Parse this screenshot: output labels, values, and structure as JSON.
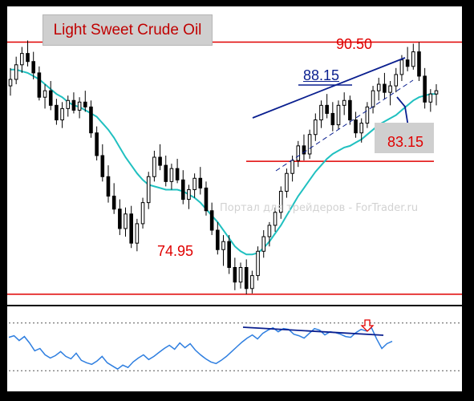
{
  "chart_title": "Light Sweet Crude Oil",
  "watermark": "Портал для трейдеров - ForTrader.ru",
  "colors": {
    "frame": "#000000",
    "background": "#ffffff",
    "candles": "#000000",
    "moving_average": "#20c0c0",
    "levels": "#e00000",
    "trendlines": "#0a1f8f",
    "oscillator": "#2f7fe0",
    "label_box": "#cfcfcf"
  },
  "annotations": {
    "resistance_label": "90.50",
    "channel_label": "88.15",
    "target_label": "83.15",
    "low_label": "74.95"
  },
  "chart_data": {
    "type": "candlestick",
    "title": "Light Sweet Crude Oil",
    "candles": [
      [
        87.8,
        88.9,
        87.2,
        88.2
      ],
      [
        88.2,
        89.6,
        87.9,
        89.1
      ],
      [
        89.1,
        90.2,
        88.6,
        89.8
      ],
      [
        89.8,
        90.6,
        89.0,
        89.3
      ],
      [
        89.3,
        89.9,
        88.2,
        88.6
      ],
      [
        88.6,
        89.0,
        86.9,
        87.1
      ],
      [
        87.1,
        87.9,
        86.4,
        87.5
      ],
      [
        87.5,
        88.1,
        86.3,
        86.6
      ],
      [
        86.6,
        87.0,
        85.4,
        85.7
      ],
      [
        85.7,
        86.8,
        85.2,
        86.4
      ],
      [
        86.4,
        87.2,
        85.9,
        86.9
      ],
      [
        86.9,
        87.4,
        86.1,
        86.3
      ],
      [
        86.3,
        87.1,
        85.8,
        86.8
      ],
      [
        86.8,
        87.5,
        86.2,
        86.5
      ],
      [
        86.5,
        86.9,
        84.6,
        84.9
      ],
      [
        84.9,
        85.3,
        83.2,
        83.5
      ],
      [
        83.5,
        84.2,
        81.9,
        82.2
      ],
      [
        82.2,
        82.9,
        80.6,
        81.0
      ],
      [
        81.0,
        81.8,
        79.9,
        80.2
      ],
      [
        80.2,
        80.8,
        78.6,
        79.0
      ],
      [
        79.0,
        80.3,
        78.5,
        79.9
      ],
      [
        79.9,
        80.4,
        77.8,
        78.1
      ],
      [
        78.1,
        79.6,
        77.6,
        79.3
      ],
      [
        79.3,
        80.9,
        79.0,
        80.6
      ],
      [
        80.6,
        82.5,
        80.2,
        82.2
      ],
      [
        82.2,
        83.8,
        81.9,
        83.4
      ],
      [
        83.4,
        84.2,
        82.6,
        82.9
      ],
      [
        82.9,
        83.5,
        81.6,
        81.9
      ],
      [
        81.9,
        83.0,
        81.4,
        82.7
      ],
      [
        82.7,
        83.3,
        81.8,
        82.0
      ],
      [
        82.0,
        82.6,
        80.5,
        80.8
      ],
      [
        80.8,
        81.7,
        80.2,
        81.4
      ],
      [
        81.4,
        82.4,
        80.9,
        82.1
      ],
      [
        82.1,
        82.8,
        81.1,
        81.5
      ],
      [
        81.5,
        81.9,
        79.8,
        80.1
      ],
      [
        80.1,
        80.6,
        78.6,
        78.9
      ],
      [
        78.9,
        79.4,
        77.4,
        77.7
      ],
      [
        77.7,
        78.6,
        76.7,
        78.2
      ],
      [
        78.2,
        78.6,
        76.2,
        76.6
      ],
      [
        76.6,
        77.2,
        75.2,
        75.7
      ],
      [
        75.7,
        76.9,
        75.3,
        76.6
      ],
      [
        76.6,
        77.1,
        74.95,
        75.3
      ],
      [
        75.3,
        76.4,
        75.0,
        76.1
      ],
      [
        76.1,
        77.9,
        75.8,
        77.6
      ],
      [
        77.6,
        78.9,
        77.2,
        78.5
      ],
      [
        78.5,
        79.4,
        77.9,
        79.2
      ],
      [
        79.2,
        80.3,
        78.8,
        80.0
      ],
      [
        80.0,
        81.6,
        79.6,
        81.3
      ],
      [
        81.3,
        82.7,
        80.9,
        82.4
      ],
      [
        82.4,
        83.5,
        81.9,
        83.2
      ],
      [
        83.2,
        84.4,
        82.8,
        84.1
      ],
      [
        84.1,
        84.8,
        83.2,
        83.6
      ],
      [
        83.6,
        85.1,
        83.3,
        84.8
      ],
      [
        84.8,
        86.1,
        84.4,
        85.7
      ],
      [
        85.7,
        86.9,
        85.2,
        86.6
      ],
      [
        86.6,
        87.3,
        85.8,
        86.1
      ],
      [
        86.1,
        86.8,
        85.0,
        85.4
      ],
      [
        85.4,
        86.9,
        85.1,
        86.6
      ],
      [
        86.6,
        87.4,
        86.0,
        86.9
      ],
      [
        86.9,
        87.2,
        85.4,
        85.7
      ],
      [
        85.7,
        86.2,
        84.6,
        84.9
      ],
      [
        84.9,
        85.8,
        84.3,
        85.5
      ],
      [
        85.5,
        86.8,
        85.2,
        86.5
      ],
      [
        86.5,
        87.8,
        86.1,
        87.5
      ],
      [
        87.5,
        88.3,
        86.9,
        87.9
      ],
      [
        87.9,
        88.6,
        87.0,
        87.4
      ],
      [
        87.4,
        88.1,
        86.6,
        87.8
      ],
      [
        87.8,
        88.9,
        87.4,
        88.5
      ],
      [
        88.5,
        89.7,
        88.1,
        89.4
      ],
      [
        89.4,
        90.2,
        88.7,
        89.0
      ],
      [
        89.0,
        90.4,
        88.8,
        89.9
      ],
      [
        89.9,
        90.5,
        88.1,
        88.4
      ],
      [
        88.4,
        88.9,
        86.4,
        86.8
      ],
      [
        86.8,
        87.6,
        86.2,
        87.3
      ],
      [
        87.3,
        87.9,
        86.6,
        87.5
      ]
    ],
    "moving_average": [
      88.8,
      88.8,
      88.7,
      88.6,
      88.4,
      88.2,
      87.9,
      87.6,
      87.3,
      87.1,
      86.8,
      86.6,
      86.5,
      86.3,
      86.1,
      85.9,
      85.5,
      85.1,
      84.6,
      84.0,
      83.4,
      82.9,
      82.4,
      82.0,
      81.7,
      81.6,
      81.5,
      81.4,
      81.4,
      81.4,
      81.3,
      81.1,
      80.9,
      80.6,
      80.2,
      79.8,
      79.4,
      78.9,
      78.4,
      77.9,
      77.6,
      77.4,
      77.4,
      77.5,
      77.8,
      78.2,
      78.7,
      79.2,
      79.8,
      80.4,
      81.0,
      81.5,
      82.0,
      82.5,
      82.9,
      83.3,
      83.6,
      83.8,
      84.0,
      84.1,
      84.3,
      84.5,
      84.8,
      85.1,
      85.4,
      85.6,
      85.8,
      86.0,
      86.3,
      86.6,
      86.9,
      87.1,
      87.2,
      87.3,
      87.3
    ],
    "levels": [
      {
        "label": "90.50",
        "value": 90.5
      },
      {
        "label": "83.15",
        "value": 83.15
      },
      {
        "label": "74.95",
        "value": 74.95
      }
    ],
    "oscillator": {
      "values": [
        62,
        64,
        58,
        63,
        55,
        45,
        48,
        40,
        36,
        39,
        44,
        38,
        35,
        42,
        33,
        30,
        28,
        32,
        38,
        30,
        26,
        22,
        27,
        24,
        31,
        36,
        40,
        34,
        38,
        43,
        48,
        52,
        47,
        55,
        49,
        54,
        46,
        40,
        35,
        31,
        29,
        33,
        38,
        44,
        50,
        56,
        61,
        65,
        60,
        67,
        71,
        74,
        69,
        73,
        72,
        66,
        64,
        61,
        67,
        73,
        71,
        65,
        69,
        68,
        66,
        63,
        62,
        68,
        72,
        70,
        74,
        60,
        48,
        54,
        57
      ],
      "range": [
        0,
        100
      ],
      "levels": [
        80,
        20
      ]
    },
    "ylim": [
      74.3,
      92.7
    ]
  }
}
